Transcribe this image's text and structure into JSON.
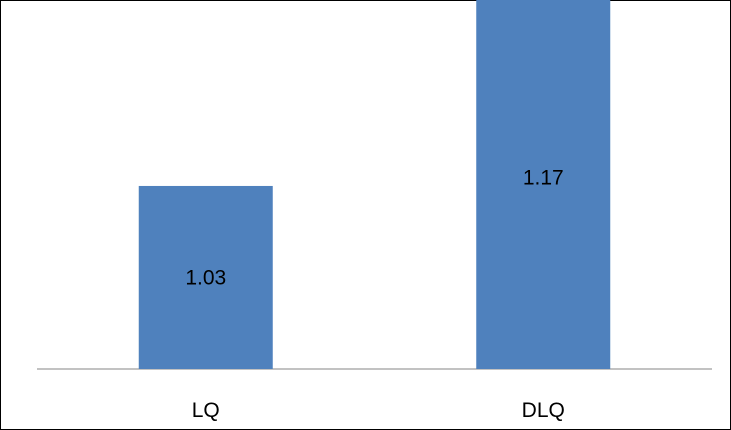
{
  "chart_data": {
    "type": "bar",
    "categories": [
      "LQ",
      "DLQ"
    ],
    "series": [
      {
        "values": [
          1.03,
          1.17
        ],
        "labels": [
          "1.03",
          "1.17"
        ],
        "color": "#4F81BD"
      }
    ],
    "title": "",
    "xlabel": "",
    "ylabel": "",
    "axis_color": "#868686",
    "grid": false,
    "legend": "none"
  }
}
